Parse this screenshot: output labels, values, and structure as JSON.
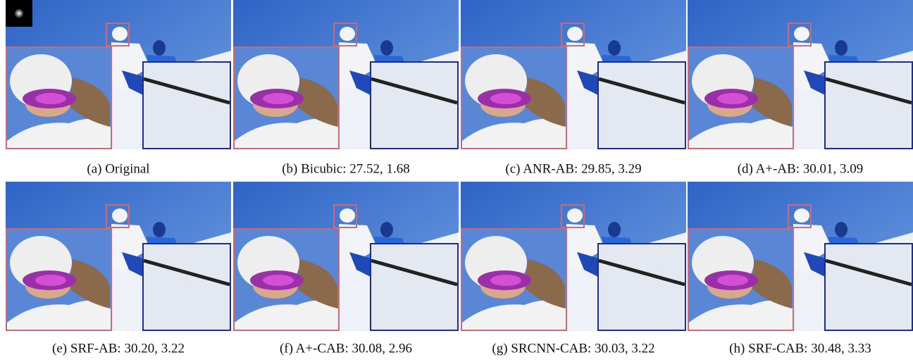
{
  "figure": {
    "panels": [
      {
        "caption": "(a) Original"
      },
      {
        "caption": "(b) Bicubic: 27.52, 1.68"
      },
      {
        "caption": "(c) ANR-AB: 29.85, 3.29"
      },
      {
        "caption": "(d) A+-AB: 30.01, 3.09"
      },
      {
        "caption": "(e) SRF-AB: 30.20, 3.22"
      },
      {
        "caption": "(f) A+-CAB: 30.08, 2.96"
      },
      {
        "caption": "(g) SRCNN-CAB: 30.03, 3.22"
      },
      {
        "caption": "(h) SRF-CAB: 30.48, 3.33"
      }
    ]
  }
}
